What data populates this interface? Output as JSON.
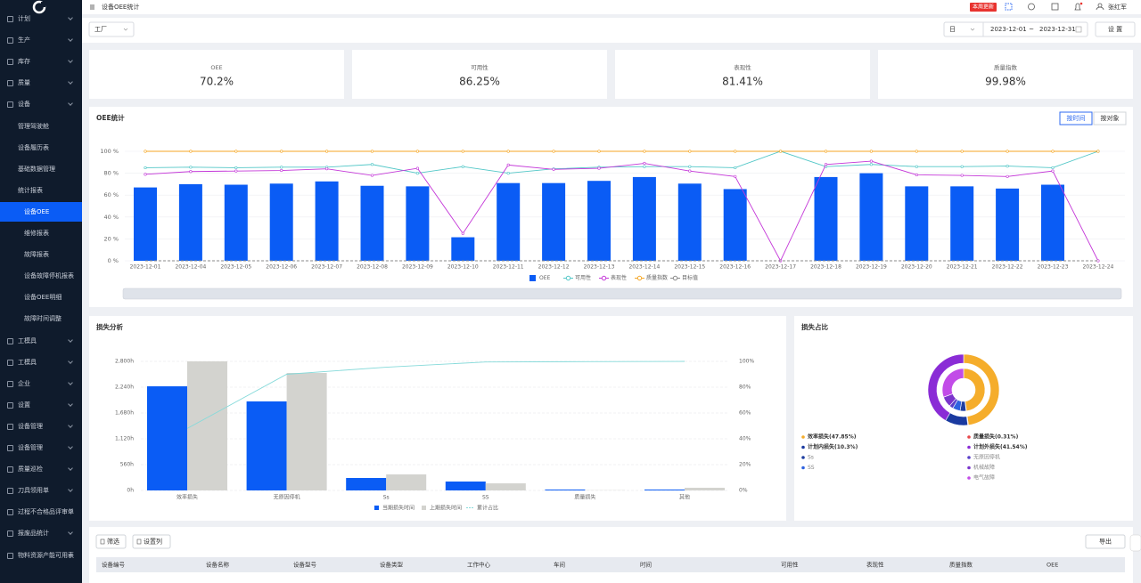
{
  "sidebar": {
    "items": [
      "计划",
      "生产",
      "库存",
      "质量",
      "设备",
      "管理驾驶舱",
      "设备履历表",
      "基础数据管理",
      "统计报表",
      "设备OEE",
      "维修报表",
      "故障报表",
      "设备故障停机报表",
      "设备OEE明细",
      "故障时间调整",
      "工模具",
      "工模具",
      "企业",
      "设置",
      "设备管理",
      "设备管理",
      "质量巡检",
      "刀具领用单",
      "过程不合格品评审单",
      "报废品统计",
      "物料资源产能可用表"
    ]
  },
  "header": {
    "title": "设备OEE统计",
    "badge": "本周更新",
    "user": "张红军"
  },
  "filters": {
    "factory": "工厂",
    "period": "日",
    "start": "2023-12-01",
    "separator": "~",
    "end": "2023-12-31",
    "button": "设 置"
  },
  "kpis": [
    {
      "label": "OEE",
      "value": "70.2%"
    },
    {
      "label": "可用性",
      "value": "86.25%"
    },
    {
      "label": "表现性",
      "value": "81.41%"
    },
    {
      "label": "质量指数",
      "value": "99.98%"
    }
  ],
  "chart_data": [
    {
      "type": "bar_line",
      "title": "OEE统计",
      "buttons": [
        "按时间",
        "按对象"
      ],
      "categories": [
        "2023-12-01",
        "2023-12-04",
        "2023-12-05",
        "2023-12-06",
        "2023-12-07",
        "2023-12-08",
        "2023-12-09",
        "2023-12-10",
        "2023-12-11",
        "2023-12-12",
        "2023-12-13",
        "2023-12-14",
        "2023-12-15",
        "2023-12-16",
        "2023-12-17",
        "2023-12-18",
        "2023-12-19",
        "2023-12-20",
        "2023-12-21",
        "2023-12-22",
        "2023-12-23",
        "2023-12-24"
      ],
      "ylim": [
        0,
        100
      ],
      "yticks": [
        {
          "value": 0,
          "label": "0 %"
        },
        {
          "value": 20,
          "label": "20 %"
        },
        {
          "value": 40,
          "label": "40 %"
        },
        {
          "value": 60,
          "label": "60 %"
        },
        {
          "value": 80,
          "label": "80 %"
        },
        {
          "value": 100,
          "label": "100 %"
        }
      ],
      "grid": true,
      "series": [
        {
          "name": "OEE",
          "type": "bar",
          "color": "#0a5cf5",
          "values": [
            67,
            70,
            69.5,
            70.5,
            72.5,
            68.5,
            68,
            21.5,
            71,
            71,
            73,
            76.5,
            70.5,
            65.5,
            0,
            76.5,
            80,
            68,
            68,
            66,
            69.5,
            0
          ]
        },
        {
          "name": "可用性",
          "type": "line",
          "color": "#52c7c7",
          "values": [
            85,
            85.5,
            85,
            85.5,
            85.5,
            88,
            80,
            86,
            80,
            84,
            85.5,
            86,
            86,
            85,
            100,
            86,
            88,
            86,
            86,
            86.5,
            85,
            100
          ]
        },
        {
          "name": "表现性",
          "type": "line",
          "color": "#c437d8",
          "values": [
            79,
            81.5,
            82,
            82.5,
            84,
            78,
            84.5,
            25,
            87.5,
            83.5,
            84.5,
            89,
            82,
            77,
            0,
            88,
            91,
            78.5,
            78,
            77,
            82,
            0
          ]
        },
        {
          "name": "质量指数",
          "type": "line",
          "color": "#f5a623",
          "values": [
            100,
            100,
            100,
            100,
            100,
            100,
            100,
            100,
            100,
            100,
            100,
            100,
            100,
            100,
            100,
            100,
            100,
            100,
            100,
            100,
            100,
            100
          ]
        },
        {
          "name": "目标值",
          "type": "line",
          "color": "#888888",
          "dashed": true,
          "values": [
            0,
            0,
            0,
            0,
            0,
            0,
            0,
            0,
            0,
            0,
            0,
            0,
            0,
            0,
            0,
            0,
            0,
            0,
            0,
            0,
            0,
            0
          ]
        }
      ]
    },
    {
      "type": "pareto",
      "title": "损失分析",
      "categories": [
        "效率损失",
        "无原因停机",
        "Ss",
        "SS",
        "质量损失",
        "其他"
      ],
      "ylim": [
        0,
        2800
      ],
      "yticks": [
        {
          "value": 0,
          "label": "0h"
        },
        {
          "value": 560,
          "label": "560h"
        },
        {
          "value": 1120,
          "label": "1,120h"
        },
        {
          "value": 1680,
          "label": "1,680h"
        },
        {
          "value": 2240,
          "label": "2,240h"
        },
        {
          "value": 2800,
          "label": "2,800h"
        }
      ],
      "y2lim": [
        0,
        100
      ],
      "y2ticks": [
        {
          "value": 0,
          "label": "0%"
        },
        {
          "value": 20,
          "label": "20%"
        },
        {
          "value": 40,
          "label": "40%"
        },
        {
          "value": 60,
          "label": "60%"
        },
        {
          "value": 80,
          "label": "80%"
        },
        {
          "value": 100,
          "label": "100%"
        }
      ],
      "grid": true,
      "series": [
        {
          "name": "当期损失时间",
          "type": "bar",
          "color": "#0a5cf5",
          "values": [
            2259,
            1931,
            270,
            193,
            19,
            19
          ]
        },
        {
          "name": "上期损失时间",
          "type": "bar",
          "color": "#d3d3cf",
          "values": [
            2800,
            2549,
            348,
            154,
            5,
            58
          ]
        },
        {
          "name": "累计占比",
          "type": "line",
          "axis": "y2",
          "color": "#86dada",
          "values": [
            48,
            90,
            95.5,
            99.5,
            99.8,
            100
          ]
        }
      ]
    },
    {
      "type": "donut",
      "title": "损失占比",
      "outer": {
        "categories": [
          "效率损失",
          "质量损失",
          "计划内损失",
          "计划外损失"
        ],
        "values": [
          47.85,
          0.31,
          10.3,
          41.54
        ],
        "value_labels": [
          "(47.85%)",
          "(0.31%)",
          "(10.3%)",
          "(41.54%)"
        ],
        "colors": [
          "#f5ad2b",
          "#e8474a",
          "#1a3aa0",
          "#8a2cd6"
        ]
      },
      "inner": {
        "categories": [
          "Ss",
          "SS",
          "无原因停机",
          "机械故障",
          "电气故障"
        ],
        "values": [
          4.5,
          5.8,
          3,
          8,
          30.54
        ],
        "colors": [
          "#1f3fa0",
          "#2f63e0",
          "#5a3fc8",
          "#7b35cc",
          "#c24ce8"
        ]
      }
    }
  ],
  "table": {
    "toolbar": [
      "筛选",
      "设置列"
    ],
    "export": "导出",
    "columns": [
      "设备编号",
      "设备名称",
      "设备型号",
      "设备类型",
      "工作中心",
      "车间",
      "时间",
      "可用性",
      "表现性",
      "质量指数",
      "OEE"
    ]
  }
}
